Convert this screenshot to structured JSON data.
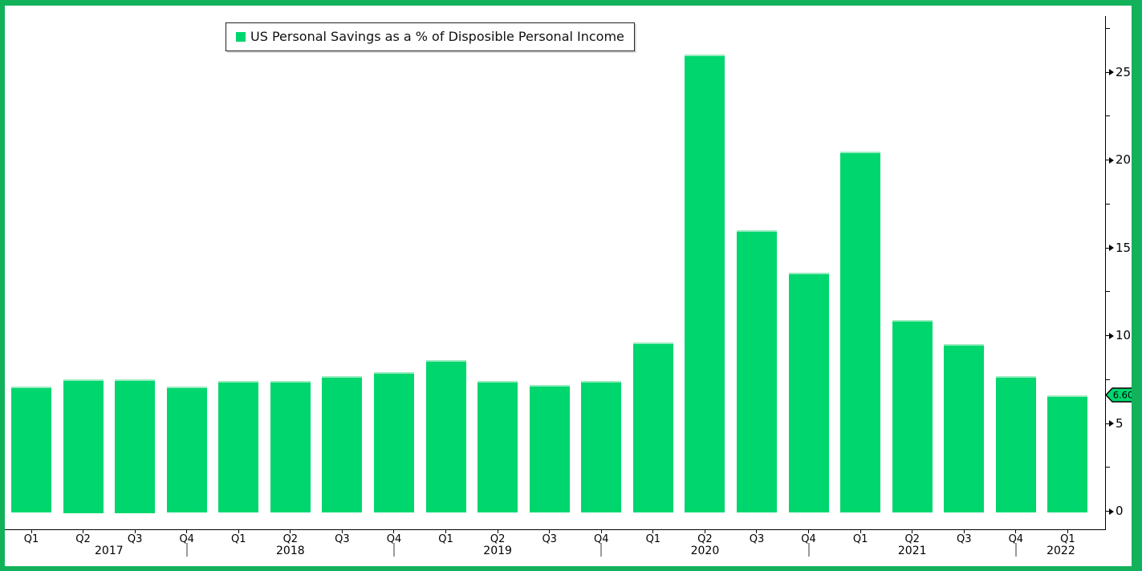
{
  "chart_data": {
    "type": "bar",
    "title": "US Personal Savings as a % of Disposible Personal Income",
    "legend": [
      {
        "label": "US Personal Savings as a % of Disposible Personal Income",
        "color": "#00D66E"
      }
    ],
    "legend_position": "top-left",
    "categories": [
      {
        "quarter": "Q1",
        "year": "2017"
      },
      {
        "quarter": "Q2",
        "year": "2017"
      },
      {
        "quarter": "Q3",
        "year": "2017"
      },
      {
        "quarter": "Q4",
        "year": "2017"
      },
      {
        "quarter": "Q1",
        "year": "2018"
      },
      {
        "quarter": "Q2",
        "year": "2018"
      },
      {
        "quarter": "Q3",
        "year": "2018"
      },
      {
        "quarter": "Q4",
        "year": "2018"
      },
      {
        "quarter": "Q1",
        "year": "2019"
      },
      {
        "quarter": "Q2",
        "year": "2019"
      },
      {
        "quarter": "Q3",
        "year": "2019"
      },
      {
        "quarter": "Q4",
        "year": "2019"
      },
      {
        "quarter": "Q1",
        "year": "2020"
      },
      {
        "quarter": "Q2",
        "year": "2020"
      },
      {
        "quarter": "Q3",
        "year": "2020"
      },
      {
        "quarter": "Q4",
        "year": "2020"
      },
      {
        "quarter": "Q1",
        "year": "2021"
      },
      {
        "quarter": "Q2",
        "year": "2021"
      },
      {
        "quarter": "Q3",
        "year": "2021"
      },
      {
        "quarter": "Q4",
        "year": "2021"
      },
      {
        "quarter": "Q1",
        "year": "2022"
      }
    ],
    "values": [
      7.1,
      7.5,
      7.5,
      7.1,
      7.4,
      7.4,
      7.7,
      7.9,
      8.6,
      7.4,
      7.2,
      7.4,
      9.6,
      26.0,
      16.0,
      13.6,
      20.5,
      10.9,
      9.5,
      7.7,
      6.6
    ],
    "ylabel": "",
    "xlabel": "",
    "y_axis": {
      "side": "right",
      "major_ticks": [
        0,
        5,
        10,
        15,
        20,
        25
      ],
      "minor_ticks": [
        2.5,
        7.5,
        12.5,
        17.5,
        22.5,
        27.5
      ],
      "range": [
        -1.1,
        28.2
      ]
    },
    "x_axis": {
      "year_labels": [
        "2017",
        "2018",
        "2019",
        "2020",
        "2021",
        "2022"
      ],
      "year_divider_quarter": "Q4"
    },
    "last_value_tag": {
      "text": "6.60",
      "value": 6.6
    },
    "grid": false,
    "colors": {
      "bar": "#00D66E",
      "bar_highlight": "#9AECC1",
      "frame": "#12B25A",
      "axis": "#000000",
      "year_divider": "#9A9A9A",
      "tag_fill": "#00D66E",
      "tag_border": "#000000",
      "tag_text": "#000000"
    }
  }
}
